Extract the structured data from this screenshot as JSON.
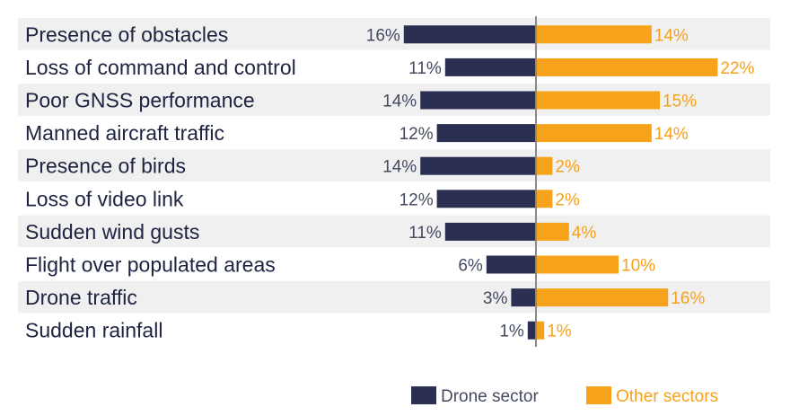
{
  "chart_data": {
    "type": "bar",
    "orientation": "horizontal-diverging",
    "title": "",
    "xlabel": "",
    "ylabel": "",
    "categories": [
      "Presence of obstacles",
      "Loss of command and control",
      "Poor GNSS performance",
      "Manned aircraft traffic",
      "Presence of birds",
      "Loss of video link",
      "Sudden wind gusts",
      "Flight over populated areas",
      "Drone traffic",
      "Sudden rainfall"
    ],
    "series": [
      {
        "name": "Drone sector",
        "color": "#2b3052",
        "values": [
          16,
          11,
          14,
          12,
          14,
          12,
          11,
          6,
          3,
          1
        ],
        "labels": [
          "16%",
          "11%",
          "14%",
          "12%",
          "14%",
          "12%",
          "11%",
          "6%",
          "3%",
          "1%"
        ]
      },
      {
        "name": "Other sectors",
        "color": "#f7a21b",
        "values": [
          14,
          22,
          15,
          14,
          2,
          2,
          4,
          10,
          16,
          1
        ],
        "labels": [
          "14%",
          "22%",
          "15%",
          "14%",
          "2%",
          "2%",
          "4%",
          "10%",
          "16%",
          "1%"
        ]
      }
    ],
    "unit": "%",
    "grid": false,
    "legend": "bottom-right",
    "row_banding": true
  }
}
